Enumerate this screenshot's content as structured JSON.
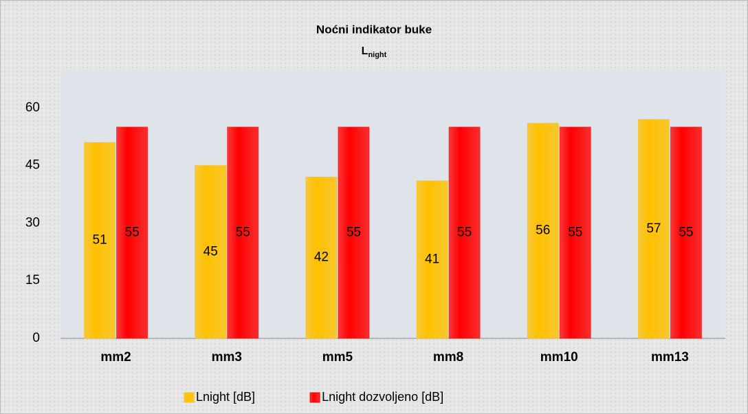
{
  "chart_data": {
    "type": "bar",
    "title": "Noćni indikator buke",
    "subtitle": {
      "text": "L",
      "subscript": "night"
    },
    "categories": [
      "mm2",
      "mm3",
      "mm5",
      "mm8",
      "mm10",
      "mm13"
    ],
    "series": [
      {
        "name": "Lnight [dB]",
        "color": "#ffc000",
        "values": [
          51,
          45,
          42,
          41,
          56,
          57
        ]
      },
      {
        "name": "Lnight dozvoljeno [dB]",
        "color": "#ff0000",
        "values": [
          55,
          55,
          55,
          55,
          55,
          55
        ]
      }
    ],
    "ylim": [
      0,
      70
    ],
    "yticks": [
      0,
      15,
      30,
      45,
      60
    ],
    "grid": false,
    "legend": "bottom"
  }
}
